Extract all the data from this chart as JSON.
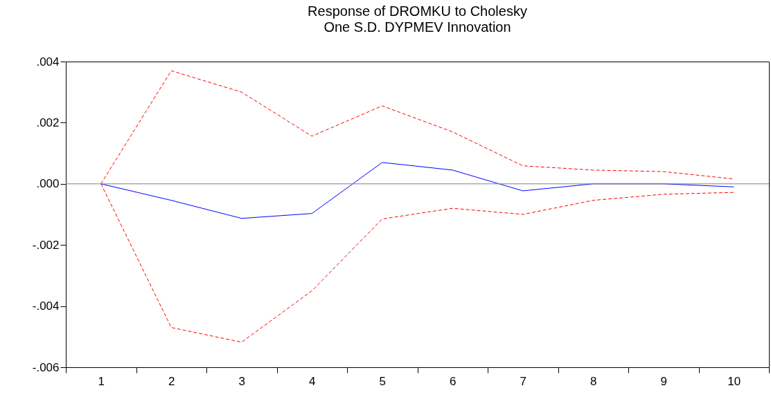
{
  "chart_data": {
    "type": "line",
    "title": "Response of DROMKU to Cholesky\nOne S.D. DYPMEV Innovation",
    "categories": [
      "1",
      "2",
      "3",
      "4",
      "5",
      "6",
      "7",
      "8",
      "9",
      "10"
    ],
    "series": [
      {
        "color": "#0000ff",
        "line_style": "solid",
        "values": [
          0,
          -0.00054,
          -0.00113,
          -0.00097,
          0.0007,
          0.00045,
          -0.00023,
          0,
          0,
          -0.0001
        ]
      },
      {
        "color": "#ff0000",
        "line_style": "dashed",
        "values": [
          0,
          0.0037,
          0.003,
          0.00156,
          0.00255,
          0.0017,
          0.00059,
          0.00045,
          0.0004,
          0.00016
        ]
      },
      {
        "color": "#ff0000",
        "line_style": "dashed",
        "values": [
          0,
          -0.0047,
          -0.00518,
          -0.0035,
          -0.00115,
          -0.0008,
          -0.001,
          -0.00054,
          -0.00034,
          -0.00028
        ]
      }
    ],
    "ylim": [
      -0.006,
      0.004
    ],
    "yticks": [
      {
        "value": -0.006,
        "label": "-.006"
      },
      {
        "value": -0.004,
        "label": "-.004"
      },
      {
        "value": -0.002,
        "label": "-.002"
      },
      {
        "value": 0,
        "label": ".000"
      },
      {
        "value": 0.002,
        "label": ".002"
      },
      {
        "value": 0.004,
        "label": ".004"
      }
    ],
    "ref_lines": [
      {
        "axis": "y",
        "value": 0,
        "color": "#808080"
      }
    ],
    "grid": false
  }
}
